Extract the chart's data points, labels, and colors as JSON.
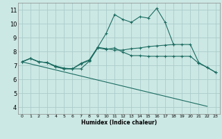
{
  "title": "",
  "xlabel": "Humidex (Indice chaleur)",
  "bg_color": "#cce8e4",
  "grid_color": "#aaccca",
  "line_color": "#1a6b60",
  "xlim": [
    -0.5,
    23.5
  ],
  "ylim": [
    3.5,
    11.5
  ],
  "xticks": [
    0,
    1,
    2,
    3,
    4,
    5,
    6,
    7,
    8,
    9,
    10,
    11,
    12,
    13,
    14,
    15,
    16,
    17,
    18,
    19,
    20,
    21,
    22,
    23
  ],
  "yticks": [
    4,
    5,
    6,
    7,
    8,
    9,
    10,
    11
  ],
  "series1_x": [
    0,
    1,
    2,
    3,
    4,
    5,
    6,
    7,
    8,
    9,
    10,
    11,
    12,
    13,
    14,
    15,
    16,
    17,
    18,
    19,
    20,
    21,
    22,
    23
  ],
  "series1_y": [
    7.25,
    7.5,
    7.25,
    7.2,
    6.9,
    6.75,
    6.75,
    7.15,
    7.4,
    8.3,
    8.2,
    8.1,
    8.1,
    8.2,
    8.25,
    8.35,
    8.4,
    8.45,
    8.5,
    8.5,
    8.5,
    7.2,
    6.85,
    6.5
  ],
  "series2_x": [
    0,
    1,
    2,
    3,
    4,
    5,
    6,
    7,
    8,
    9,
    10,
    11,
    12,
    13,
    14,
    15,
    16,
    17,
    18
  ],
  "series2_y": [
    7.25,
    7.5,
    7.25,
    7.2,
    6.95,
    6.8,
    6.75,
    7.1,
    7.35,
    8.3,
    9.3,
    10.65,
    10.3,
    10.1,
    10.5,
    10.4,
    11.1,
    10.1,
    8.5
  ],
  "series3_x": [
    0,
    1,
    2,
    3,
    4,
    5,
    6,
    7,
    8,
    9,
    10,
    11,
    12,
    13,
    14,
    15,
    16,
    17,
    18,
    19,
    20,
    21,
    22,
    23
  ],
  "series3_y": [
    7.25,
    7.5,
    7.25,
    7.2,
    6.9,
    6.75,
    6.75,
    6.75,
    7.3,
    8.25,
    8.15,
    8.25,
    7.95,
    7.7,
    7.7,
    7.65,
    7.65,
    7.65,
    7.65,
    7.65,
    7.65,
    7.15,
    6.85,
    6.5
  ],
  "series4_x": [
    0,
    22
  ],
  "series4_y": [
    7.25,
    4.05
  ]
}
